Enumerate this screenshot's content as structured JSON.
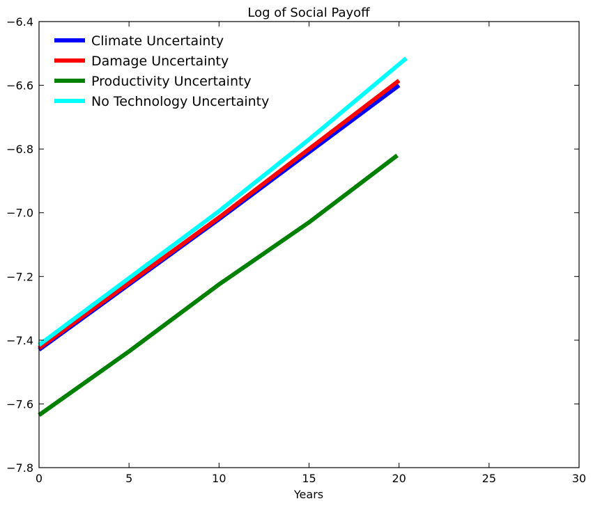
{
  "chart_data": {
    "type": "line",
    "title": "Log of Social Payoff",
    "xlabel": "Years",
    "ylabel": "",
    "xlim": [
      0,
      30
    ],
    "ylim": [
      -7.8,
      -6.4
    ],
    "x_ticks": [
      0,
      5,
      10,
      15,
      20,
      25,
      30
    ],
    "y_ticks": [
      -7.8,
      -7.6,
      -7.4,
      -7.2,
      -7.0,
      -6.8,
      -6.6,
      -6.4
    ],
    "x_tick_labels": [
      "0",
      "5",
      "10",
      "15",
      "20",
      "25",
      "30"
    ],
    "y_tick_labels": [
      "−7.8",
      "−7.6",
      "−7.4",
      "−7.2",
      "−7.0",
      "−6.8",
      "−6.6",
      "−6.4"
    ],
    "grid": false,
    "legend_position": "top-left",
    "series": [
      {
        "name": "Climate Uncertainty",
        "color": "#0000ff",
        "points": [
          [
            0,
            -7.43
          ],
          [
            5,
            -7.225
          ],
          [
            10,
            -7.02
          ],
          [
            15,
            -6.81
          ],
          [
            20,
            -6.6
          ]
        ]
      },
      {
        "name": "Damage Uncertainty",
        "color": "#ff0000",
        "points": [
          [
            0,
            -7.425
          ],
          [
            5,
            -7.22
          ],
          [
            10,
            -7.015
          ],
          [
            15,
            -6.8
          ],
          [
            20,
            -6.585
          ]
        ]
      },
      {
        "name": "Productivity Uncertainty",
        "color": "#008000",
        "points": [
          [
            0,
            -7.635
          ],
          [
            5,
            -7.435
          ],
          [
            10,
            -7.225
          ],
          [
            15,
            -7.03
          ],
          [
            19.9,
            -6.82
          ]
        ]
      },
      {
        "name": "No Technology Uncertainty",
        "color": "#00ffff",
        "points": [
          [
            0,
            -7.415
          ],
          [
            5,
            -7.205
          ],
          [
            10,
            -6.995
          ],
          [
            15,
            -6.77
          ],
          [
            20.4,
            -6.515
          ]
        ]
      }
    ]
  }
}
